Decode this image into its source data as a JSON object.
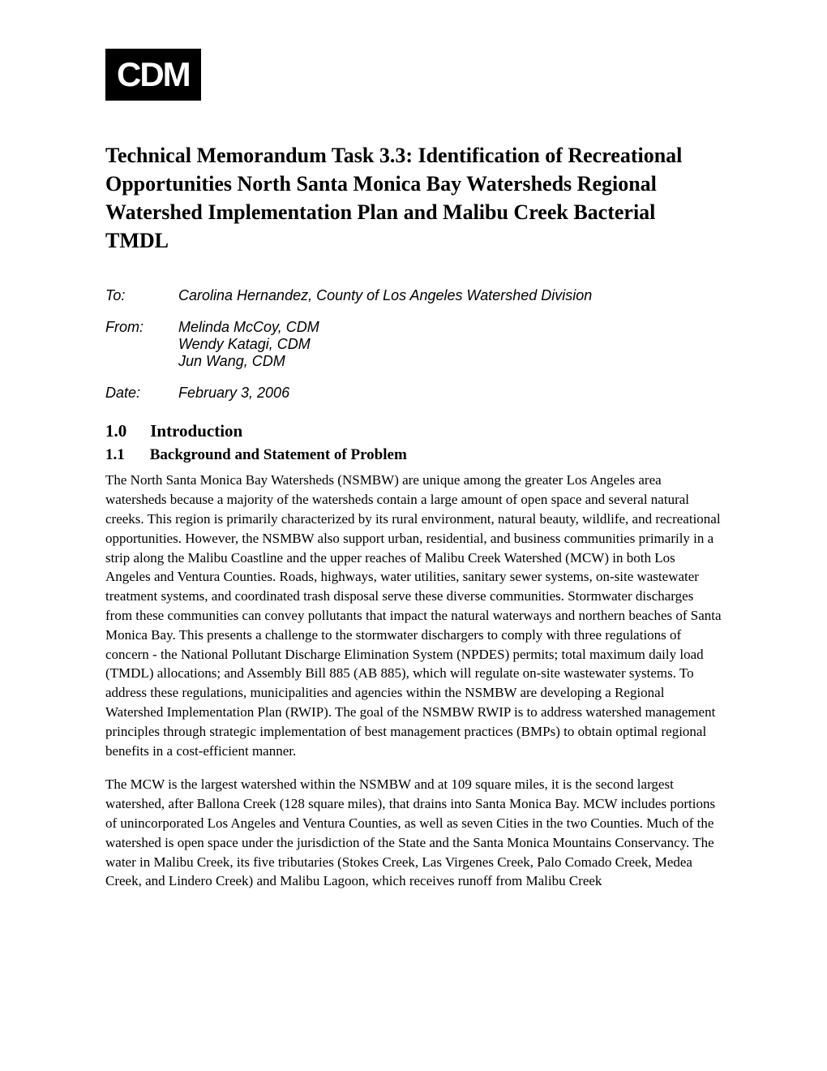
{
  "logo": {
    "text": "CDM",
    "background_color": "#000000",
    "text_color": "#ffffff"
  },
  "title": "Technical Memorandum Task 3.3:  Identification of Recreational Opportunities North Santa Monica Bay Watersheds Regional Watershed Implementation Plan and Malibu Creek Bacterial TMDL",
  "meta": {
    "to": {
      "label": "To:",
      "value": "Carolina Hernandez, County of Los Angeles Watershed Division"
    },
    "from": {
      "label": "From:",
      "lines": [
        "Melinda McCoy, CDM",
        "Wendy Katagi, CDM",
        "Jun Wang, CDM"
      ]
    },
    "date": {
      "label": "Date:",
      "value": "February 3, 2006"
    }
  },
  "section": {
    "number": "1.0",
    "title": "Introduction"
  },
  "subsection": {
    "number": "1.1",
    "title": "Background and Statement of Problem"
  },
  "paragraphs": [
    "The North Santa Monica Bay Watersheds (NSMBW) are unique among the greater Los Angeles area watersheds because a majority of the watersheds contain a large amount of open space and several natural creeks. This region is primarily characterized by its rural environment, natural beauty, wildlife, and recreational opportunities. However, the NSMBW also support urban, residential, and business communities primarily in a strip along the Malibu Coastline and the upper reaches of Malibu Creek Watershed (MCW) in both Los Angeles and Ventura Counties. Roads, highways, water utilities, sanitary sewer systems, on-site wastewater treatment systems, and coordinated trash disposal serve these diverse communities. Stormwater discharges from these communities can convey pollutants that impact the natural waterways and northern beaches of Santa Monica Bay. This presents a challenge to the stormwater dischargers to comply with three regulations of concern - the National Pollutant Discharge Elimination System (NPDES) permits; total maximum daily load (TMDL) allocations; and Assembly Bill 885 (AB 885), which will regulate on-site wastewater systems. To address these regulations, municipalities and agencies within the NSMBW are developing a Regional Watershed Implementation Plan (RWIP). The goal of the NSMBW RWIP is to address watershed management principles through strategic implementation of best management practices (BMPs) to obtain optimal regional benefits in a cost-efficient manner.",
    "The MCW is the largest watershed within the NSMBW and at 109 square miles, it is the second largest watershed, after Ballona Creek (128 square miles), that drains into Santa Monica Bay. MCW includes portions of unincorporated Los Angeles and Ventura Counties, as well as seven Cities in the two Counties. Much of the watershed is open space under the jurisdiction of the State and the Santa Monica Mountains Conservancy. The water in Malibu Creek, its five tributaries (Stokes Creek, Las Virgenes Creek, Palo Comado Creek, Medea Creek, and Lindero Creek) and Malibu Lagoon, which receives runoff from Malibu Creek"
  ],
  "typography": {
    "title_fontsize": 26,
    "body_fontsize": 17,
    "meta_fontsize": 18,
    "section_fontsize": 21,
    "subsection_fontsize": 19,
    "body_font": "Book Antiqua / Palatino serif",
    "meta_font": "Arial italic"
  },
  "colors": {
    "background": "#ffffff",
    "text": "#000000"
  }
}
